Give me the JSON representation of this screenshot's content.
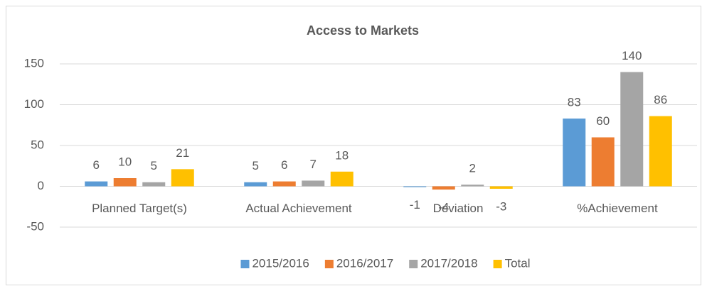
{
  "chart_data": {
    "type": "bar",
    "title": "Access to Markets",
    "categories": [
      "Planned Target(s)",
      "Actual Achievement",
      "Deviation",
      "%Achievement"
    ],
    "series": [
      {
        "name": "2015/2016",
        "color": "#5b9bd5",
        "values": [
          6,
          5,
          -1,
          83
        ]
      },
      {
        "name": "2016/2017",
        "color": "#ed7d31",
        "values": [
          10,
          6,
          -4,
          60
        ]
      },
      {
        "name": "2017/2018",
        "color": "#a5a5a5",
        "values": [
          5,
          7,
          2,
          140
        ]
      },
      {
        "name": "Total",
        "color": "#ffc000",
        "values": [
          21,
          18,
          -3,
          86
        ]
      }
    ],
    "ylim": [
      -50,
      150
    ],
    "yticks": [
      -50,
      0,
      50,
      100,
      150
    ],
    "grid": true,
    "legend": "bottom"
  }
}
